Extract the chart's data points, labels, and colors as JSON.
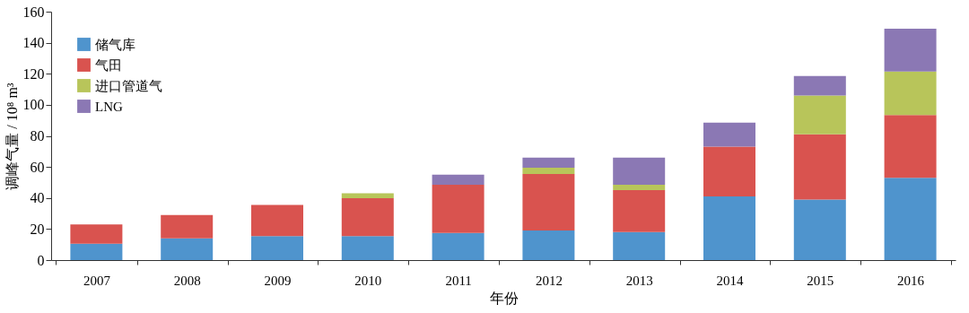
{
  "chart_data": {
    "type": "bar",
    "stacked": true,
    "xlabel": "年份",
    "ylabel": "调峰气量 / 10⁸ m³",
    "categories": [
      "2007",
      "2008",
      "2009",
      "2010",
      "2011",
      "2012",
      "2013",
      "2014",
      "2015",
      "2016"
    ],
    "series": [
      {
        "name": "储气库",
        "color": "#4f94cd",
        "values": [
          10.6,
          14,
          15.5,
          15.5,
          17.5,
          19,
          18,
          41,
          39,
          53
        ]
      },
      {
        "name": "气田",
        "color": "#d9534f",
        "values": [
          12.4,
          15,
          20,
          24.3,
          31,
          36.5,
          27,
          32,
          42,
          40.5
        ]
      },
      {
        "name": "进口管道气",
        "color": "#b8c55a",
        "values": [
          null,
          null,
          null,
          3.2,
          null,
          4,
          3.5,
          null,
          25,
          28
        ]
      },
      {
        "name": "LNG",
        "color": "#8b78b4",
        "values": [
          null,
          null,
          null,
          null,
          6.5,
          6.5,
          17.5,
          15.5,
          12.5,
          27.5
        ]
      }
    ],
    "ylim": [
      0,
      160
    ],
    "yticks": [
      0,
      20,
      40,
      60,
      80,
      100,
      120,
      140,
      160
    ],
    "grid": false,
    "legend": "top left"
  }
}
